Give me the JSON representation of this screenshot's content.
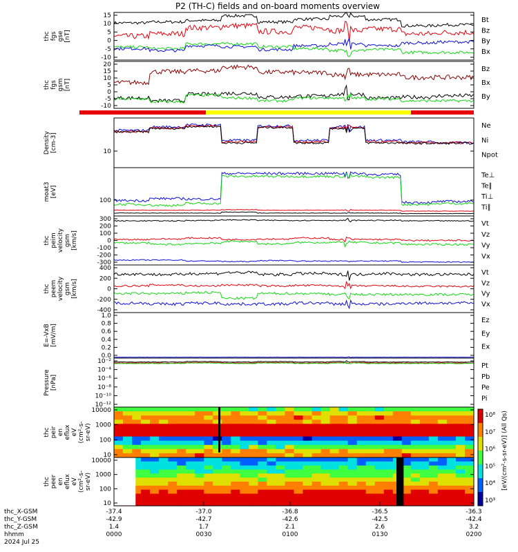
{
  "title": "P2 (TH-C) fields and on-board moments overview",
  "colors": {
    "black": "#000000",
    "red": "#e8000b",
    "green": "#12d812",
    "blue": "#0a0adc",
    "yellow": "#ffff00",
    "darkred": "#8b0000"
  },
  "panels": [
    {
      "id": "fgs_gse",
      "ylabel": [
        "thc",
        "fgs",
        "gse",
        "[nT]"
      ],
      "yticks": [
        "15",
        "10",
        "5",
        "0",
        "-5",
        "-10"
      ],
      "ylim": [
        -14,
        18
      ],
      "legend": [
        [
          "Bt",
          "black"
        ],
        [
          "Bz",
          "red"
        ],
        [
          "By",
          "green"
        ],
        [
          "Bx",
          "blue"
        ]
      ]
    },
    {
      "id": "fgs_gsm",
      "ylabel": [
        "thc",
        "fgs",
        "gsm",
        "[nT]"
      ],
      "yticks": [
        "20",
        "15",
        "10",
        "5",
        "0",
        "-5",
        "-10"
      ],
      "ylim": [
        -15,
        22
      ],
      "legend": [
        [
          "Bz",
          "darkred"
        ],
        [
          "Bx",
          "black"
        ],
        [
          "By",
          "green"
        ]
      ]
    },
    {
      "id": "density",
      "ylabel": [
        "Density",
        "[cm-3]"
      ],
      "yticks": [
        "10"
      ],
      "ylim": [
        5,
        40
      ],
      "legend": [
        [
          "Ne",
          "red"
        ],
        [
          "Ni",
          "black"
        ],
        [
          "Npot",
          "blue"
        ]
      ]
    },
    {
      "id": "temp",
      "ylabel": [
        "moat3",
        "[eV]"
      ],
      "yticks": [
        "100"
      ],
      "ylim": [
        20,
        800
      ],
      "legend": [
        [
          "Te⊥",
          "red"
        ],
        [
          "Te∥",
          "black"
        ],
        [
          "Ti⊥",
          "blue"
        ],
        [
          "Ti∥",
          "green"
        ]
      ]
    },
    {
      "id": "peim",
      "ylabel": [
        "thc",
        "peim",
        "velocity",
        "gsm",
        "[km/s]"
      ],
      "yticks": [
        "300",
        "200",
        "100",
        "0",
        "-100",
        "-200",
        "-300"
      ],
      "ylim": [
        -330,
        320
      ],
      "legend": [
        [
          "Vt",
          "black"
        ],
        [
          "Vz",
          "red"
        ],
        [
          "Vy",
          "green"
        ],
        [
          "Vx",
          "blue"
        ]
      ]
    },
    {
      "id": "peem",
      "ylabel": [
        "thc",
        "peem",
        "velocity",
        "gsm",
        "[km/s]"
      ],
      "yticks": [
        "400",
        "200",
        "0",
        "-200",
        "-400"
      ],
      "ylim": [
        -500,
        520
      ],
      "legend": [
        [
          "Vt",
          "black"
        ],
        [
          "Vz",
          "red"
        ],
        [
          "Vy",
          "green"
        ],
        [
          "Vx",
          "blue"
        ]
      ]
    },
    {
      "id": "efield",
      "ylabel": [
        "E=-VxB",
        "[mV/m]"
      ],
      "yticks": [
        "1.0",
        "0.8",
        "0.6",
        "0.4",
        "0.2",
        "0.0"
      ],
      "ylim": [
        0,
        1
      ],
      "legend": [
        [
          "Ez",
          "red"
        ],
        [
          "Ey",
          "green"
        ],
        [
          "Ex",
          "blue"
        ]
      ]
    },
    {
      "id": "pressure",
      "ylabel": [
        "Pressure",
        "[nPa]"
      ],
      "yticks": [
        "10⁻²",
        "10⁻⁴",
        "10⁻⁶",
        "10⁻⁸",
        "10⁻¹⁰",
        "10⁻¹²"
      ],
      "ylim": [
        -13,
        -1
      ],
      "legend": [
        [
          "Pt",
          "black"
        ],
        [
          "Pb",
          "red"
        ],
        [
          "Pe",
          "green"
        ],
        [
          "Pi",
          "blue"
        ]
      ]
    },
    {
      "id": "peir",
      "ylabel": [
        "thc",
        "peir",
        "en",
        "eflux",
        "eV",
        "(cm²-s-",
        "sr-eV)"
      ],
      "yticks": [
        "10000",
        "1000",
        "100",
        "10"
      ],
      "ylim": [
        5,
        30000
      ],
      "legend": []
    },
    {
      "id": "peer",
      "ylabel": [
        "thc",
        "peer",
        "en",
        "eflux",
        "eV",
        "(cm²-s-",
        "sr-eV)"
      ],
      "yticks": [
        "10000",
        "1000",
        "100",
        "10"
      ],
      "ylim": [
        5,
        30000
      ],
      "legend": []
    }
  ],
  "colorbar": {
    "ticks": [
      "10⁸",
      "10⁷",
      "10⁶",
      "10⁵",
      "10⁴",
      "10³"
    ],
    "label": "[eV/(cm²-s-sr-eV)] (All Qs)"
  },
  "xaxis": {
    "rows": [
      {
        "label": "thc_X-GSM",
        "values": [
          "-37.4",
          "-37.0",
          "-36.8",
          "-36.5",
          "-36.3"
        ]
      },
      {
        "label": "thc_Y-GSM",
        "values": [
          "-42.9",
          "-42.7",
          "-42.6",
          "-42.5",
          "-42.4"
        ]
      },
      {
        "label": "thc_Z-GSM",
        "values": [
          "1.4",
          "1.7",
          "2.1",
          "2.6",
          "3.2"
        ]
      },
      {
        "label": "hhmm",
        "values": [
          "0000",
          "0030",
          "0100",
          "0130",
          "0200"
        ]
      }
    ],
    "date": "2024 Jul 25"
  },
  "chart_data": {
    "type": "line",
    "title": "P2 (TH-C) fields and on-board moments overview",
    "x_time_ticks": [
      "0000",
      "0030",
      "0100",
      "0130",
      "0200"
    ],
    "panels": [
      {
        "name": "thc fgs gse [nT]",
        "series": [
          {
            "name": "Bt",
            "values": [
              12,
              12,
              13,
              17,
              12,
              14,
              15,
              13,
              9,
              10
            ]
          },
          {
            "name": "Bz",
            "values": [
              3,
              5,
              8,
              10,
              7,
              8,
              6,
              7,
              5,
              6
            ]
          },
          {
            "name": "By",
            "values": [
              -5,
              -6,
              -3,
              -3,
              -5,
              -6,
              -7,
              -6,
              -8,
              -8
            ]
          },
          {
            "name": "Bx",
            "values": [
              -6,
              -7,
              -4,
              -5,
              -7,
              -4,
              -3,
              -5,
              -3,
              -2
            ]
          }
        ]
      },
      {
        "name": "thc fgs gsm [nT]",
        "series": [
          {
            "name": "Bz",
            "values": [
              7,
              12,
              14,
              17,
              13,
              14,
              12,
              12,
              10,
              10
            ]
          },
          {
            "name": "Bx",
            "values": [
              -5,
              -7,
              -3,
              -2,
              -5,
              -4,
              -3,
              -6,
              -5,
              -4
            ]
          },
          {
            "name": "By",
            "values": [
              -6,
              -7,
              -3,
              -5,
              -7,
              -5,
              -5,
              -6,
              -8,
              -8
            ]
          }
        ]
      },
      {
        "name": "Density [cm-3]",
        "series": [
          {
            "name": "Ne",
            "values": [
              18,
              20,
              22,
              12,
              20,
              12,
              22,
              13,
              12,
              12
            ]
          },
          {
            "name": "Ni",
            "values": [
              17,
              19,
              21,
              12,
              19,
              12,
              21,
              13,
              12,
              12
            ]
          }
        ]
      },
      {
        "name": "moat3 [eV]",
        "series": [
          {
            "name": "Ti⊥",
            "values": [
              60,
              55,
              60,
              230,
              230,
              230,
              230,
              230,
              60,
              60
            ]
          },
          {
            "name": "Ti∥",
            "values": [
              50,
              45,
              50,
              200,
              200,
              200,
              200,
              200,
              55,
              55
            ]
          }
        ]
      },
      {
        "name": "peim velocity gsm [km/s]",
        "series": [
          {
            "name": "Vt",
            "values": [
              250,
              260,
              270,
              270,
              260,
              270,
              270,
              270,
              260,
              260
            ]
          },
          {
            "name": "Vx",
            "values": [
              -240,
              -250,
              -260,
              -270,
              -250,
              -260,
              -260,
              -260,
              -270,
              -270
            ]
          }
        ]
      },
      {
        "name": "peem velocity gsm [km/s]",
        "series": [
          {
            "name": "Vt",
            "values": [
              320,
              320,
              320,
              330,
              320,
              320,
              320,
              320,
              310,
              310
            ]
          },
          {
            "name": "Vx",
            "values": [
              -300,
              -290,
              -300,
              -300,
              -300,
              -300,
              -300,
              -300,
              -300,
              -300
            ]
          }
        ]
      }
    ]
  }
}
